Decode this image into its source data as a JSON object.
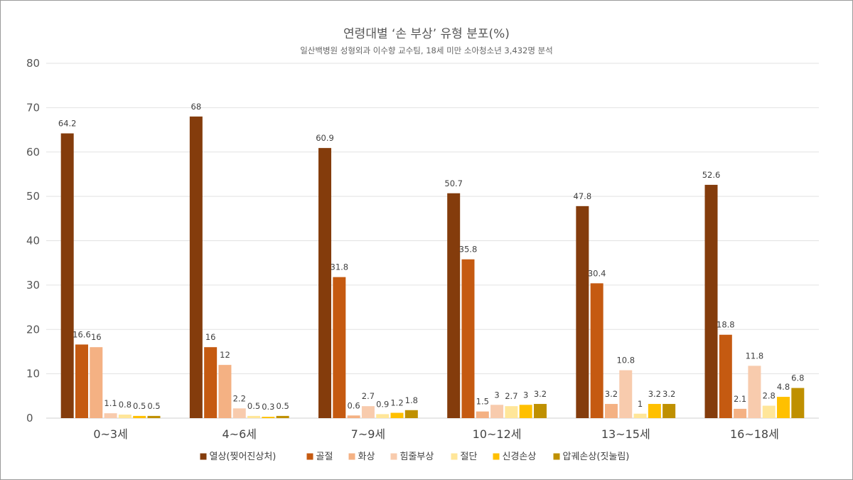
{
  "chart_data": {
    "type": "bar",
    "title": "연령대별 ‘손 부상’ 유형 분포(%)",
    "subtitle": "일산백병원 성형외과 이수향 교수팀, 18세 미만 소아청소년 3,432명 분석",
    "categories": [
      "0~3세",
      "4~6세",
      "7~9세",
      "10~12세",
      "13~15세",
      "16~18세"
    ],
    "ylim": [
      0,
      80
    ],
    "yticks": [
      0,
      10,
      20,
      30,
      40,
      50,
      60,
      70,
      80
    ],
    "grid": true,
    "legend_position": "bottom",
    "series": [
      {
        "name": "열상(찢어진상처)",
        "color": "#843c0c",
        "values": [
          64.2,
          68,
          60.9,
          50.7,
          47.8,
          52.6
        ],
        "labels": [
          "64.2",
          "68",
          "60.9",
          "50.7",
          "47.8",
          "52.6"
        ]
      },
      {
        "name": "골절",
        "color": "#c55a11",
        "values": [
          16.6,
          16,
          31.8,
          35.8,
          30.4,
          18.8
        ],
        "labels": [
          "16.6",
          "16",
          "31.8",
          "35.8",
          "30.4",
          "18.8"
        ]
      },
      {
        "name": "화상",
        "color": "#f4b183",
        "values": [
          16,
          12,
          0.6,
          1.5,
          3.2,
          2.1
        ],
        "labels": [
          "16",
          "12",
          "0.6",
          "1.5",
          "3.2",
          "2.1"
        ]
      },
      {
        "name": "힘줄부상",
        "color": "#f8cbad",
        "values": [
          1.1,
          2.2,
          2.7,
          3,
          10.8,
          11.8
        ],
        "labels": [
          "1.1",
          "2.2",
          "2.7",
          "3",
          "10.8",
          "11.8"
        ]
      },
      {
        "name": "절단",
        "color": "#ffe699",
        "values": [
          0.8,
          0.5,
          0.9,
          2.7,
          1,
          2.8
        ],
        "labels": [
          "0.8",
          "0.5",
          "0.9",
          "2.7",
          "1",
          "2.8"
        ]
      },
      {
        "name": "신경손상",
        "color": "#ffc000",
        "values": [
          0.5,
          0.3,
          1.2,
          3,
          3.2,
          4.8
        ],
        "labels": [
          "0.5",
          "0.3",
          "1.2",
          "3",
          "3.2",
          "4.8"
        ]
      },
      {
        "name": "압궤손상(짓눌림)",
        "color": "#bf9000",
        "values": [
          0.5,
          0.5,
          1.8,
          3.2,
          3.2,
          6.8
        ],
        "labels": [
          "0.5",
          "0.5",
          "1.8",
          "3.2",
          "3.2",
          "6.8"
        ]
      }
    ]
  }
}
